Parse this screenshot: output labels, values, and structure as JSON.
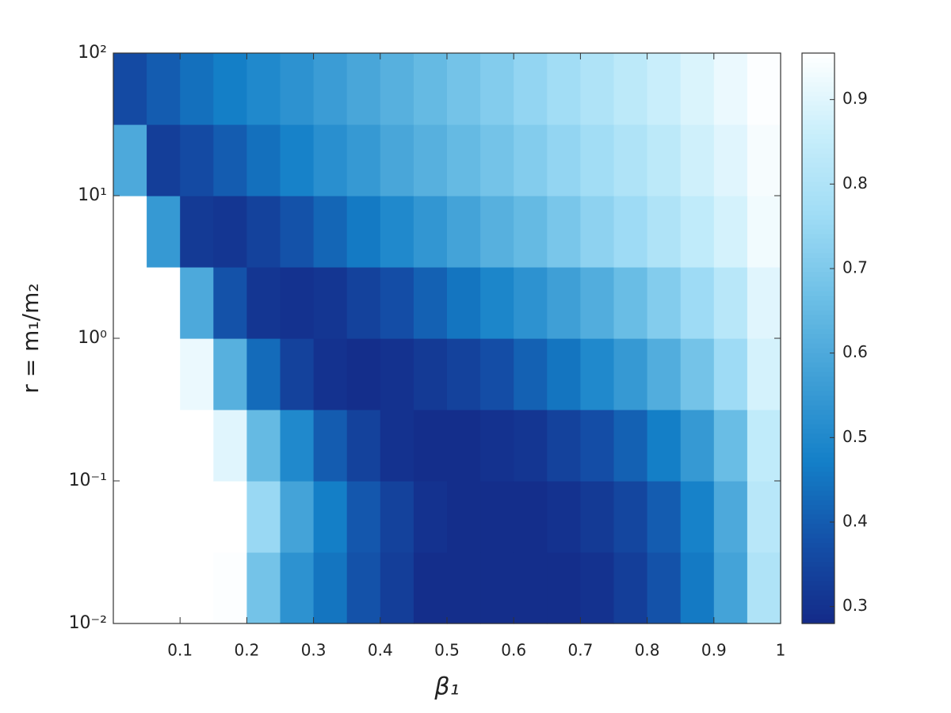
{
  "chart_data": {
    "type": "contour",
    "xlabel": "β₁",
    "ylabel": "r = m₁/m₂",
    "xlim": [
      0,
      1
    ],
    "xticks": [
      0.1,
      0.2,
      0.3,
      0.4,
      0.5,
      0.6,
      0.7,
      0.8,
      0.9,
      1
    ],
    "ylim": [
      0.01,
      100
    ],
    "ylog": true,
    "yticks": [
      {
        "value": 0.01,
        "label": "10⁻²"
      },
      {
        "value": 0.1,
        "label": "10⁻¹"
      },
      {
        "value": 1,
        "label": "10⁰"
      },
      {
        "value": 10,
        "label": "10¹"
      },
      {
        "value": 100,
        "label": "10²"
      }
    ],
    "zlim": [
      0.28,
      0.955
    ],
    "zticks": [
      0.3,
      0.4,
      0.5,
      0.6,
      0.7,
      0.8,
      0.9
    ],
    "colormap": [
      "#142a88",
      "#1450a8",
      "#1480c8",
      "#3f9fd6",
      "#6cbfe6",
      "#9fdcf5",
      "#c8eefb",
      "#ffffff"
    ],
    "x": [
      0.025,
      0.075,
      0.125,
      0.175,
      0.225,
      0.275,
      0.325,
      0.375,
      0.425,
      0.475,
      0.525,
      0.575,
      0.625,
      0.675,
      0.725,
      0.775,
      0.825,
      0.875,
      0.925,
      0.975
    ],
    "y": [
      0.0178,
      0.0562,
      0.178,
      0.562,
      1.78,
      5.62,
      17.8,
      56.2
    ],
    "z": [
      [
        1,
        1,
        1,
        0.95,
        0.68,
        0.53,
        0.45,
        0.38,
        0.33,
        0.29,
        0.29,
        0.29,
        0.29,
        0.29,
        0.3,
        0.33,
        0.38,
        0.46,
        0.58,
        0.8
      ],
      [
        1,
        1,
        1,
        0.98,
        0.75,
        0.58,
        0.47,
        0.39,
        0.34,
        0.3,
        0.29,
        0.29,
        0.29,
        0.3,
        0.32,
        0.35,
        0.4,
        0.48,
        0.6,
        0.82
      ],
      [
        1,
        1,
        1,
        0.9,
        0.65,
        0.5,
        0.4,
        0.34,
        0.3,
        0.29,
        0.29,
        0.3,
        0.31,
        0.34,
        0.37,
        0.41,
        0.47,
        0.55,
        0.66,
        0.84
      ],
      [
        1,
        1,
        0.92,
        0.62,
        0.43,
        0.34,
        0.3,
        0.29,
        0.3,
        0.32,
        0.34,
        0.37,
        0.41,
        0.45,
        0.5,
        0.55,
        0.61,
        0.68,
        0.76,
        0.88
      ],
      [
        1,
        0.97,
        0.6,
        0.38,
        0.31,
        0.3,
        0.31,
        0.34,
        0.37,
        0.41,
        0.45,
        0.49,
        0.53,
        0.57,
        0.61,
        0.66,
        0.71,
        0.76,
        0.82,
        0.9
      ],
      [
        1,
        0.55,
        0.32,
        0.31,
        0.34,
        0.38,
        0.42,
        0.46,
        0.5,
        0.54,
        0.58,
        0.62,
        0.65,
        0.69,
        0.73,
        0.76,
        0.8,
        0.84,
        0.88,
        0.93
      ],
      [
        0.6,
        0.33,
        0.36,
        0.4,
        0.44,
        0.48,
        0.52,
        0.55,
        0.59,
        0.62,
        0.65,
        0.68,
        0.71,
        0.74,
        0.77,
        0.8,
        0.83,
        0.87,
        0.9,
        0.94
      ],
      [
        0.36,
        0.4,
        0.44,
        0.47,
        0.5,
        0.53,
        0.56,
        0.59,
        0.62,
        0.65,
        0.68,
        0.71,
        0.74,
        0.77,
        0.8,
        0.83,
        0.86,
        0.89,
        0.92,
        0.95
      ]
    ]
  }
}
